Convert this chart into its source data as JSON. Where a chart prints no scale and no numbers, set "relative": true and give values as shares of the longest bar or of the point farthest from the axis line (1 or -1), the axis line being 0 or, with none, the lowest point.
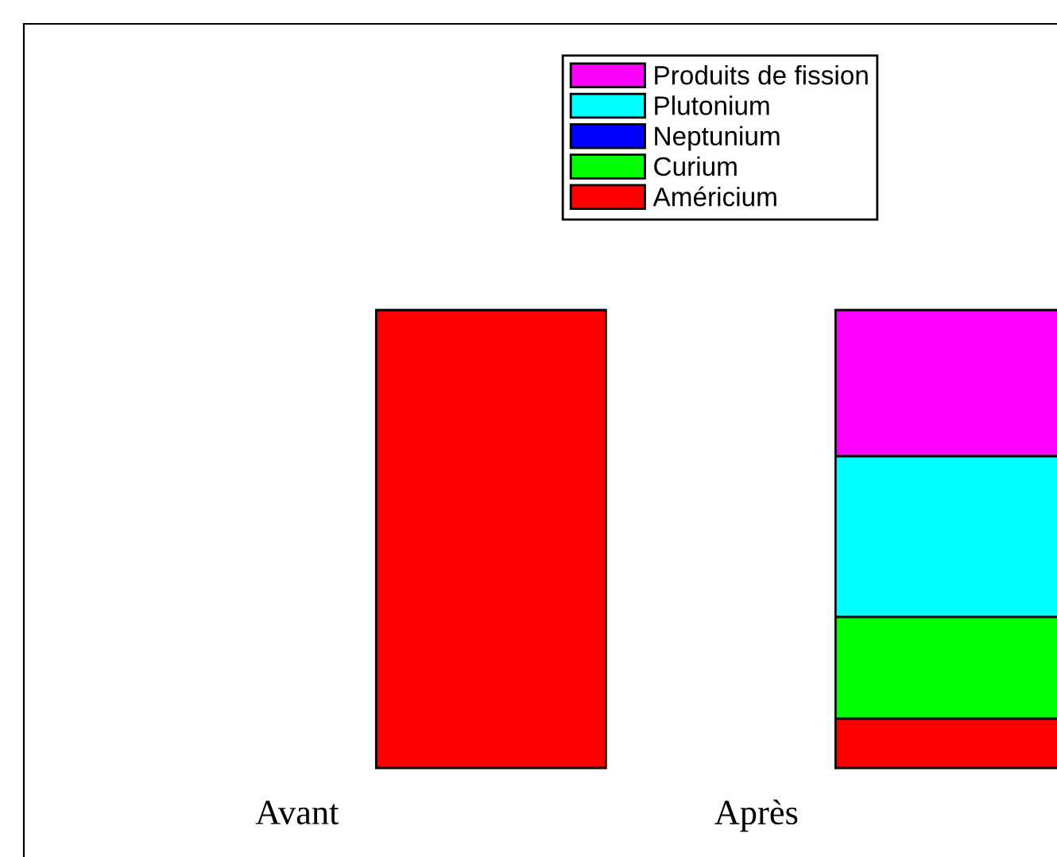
{
  "chart_data": {
    "type": "bar",
    "stacked": true,
    "relative": true,
    "categories": [
      "Avant",
      "Après"
    ],
    "series": [
      {
        "name": "Américium",
        "color": "#ff0000",
        "values": [
          1,
          0.108
        ]
      },
      {
        "name": "Curium",
        "color": "#00ff00",
        "values": [
          0,
          0.222
        ]
      },
      {
        "name": "Neptunium",
        "color": "#0000ff",
        "values": [
          0,
          0
        ]
      },
      {
        "name": "Plutonium",
        "color": "#00ffff",
        "values": [
          0,
          0.351
        ]
      },
      {
        "name": "Produits de fission",
        "color": "#ff00ff",
        "values": [
          0,
          0.319
        ]
      }
    ],
    "legend": "top",
    "grid": false
  }
}
